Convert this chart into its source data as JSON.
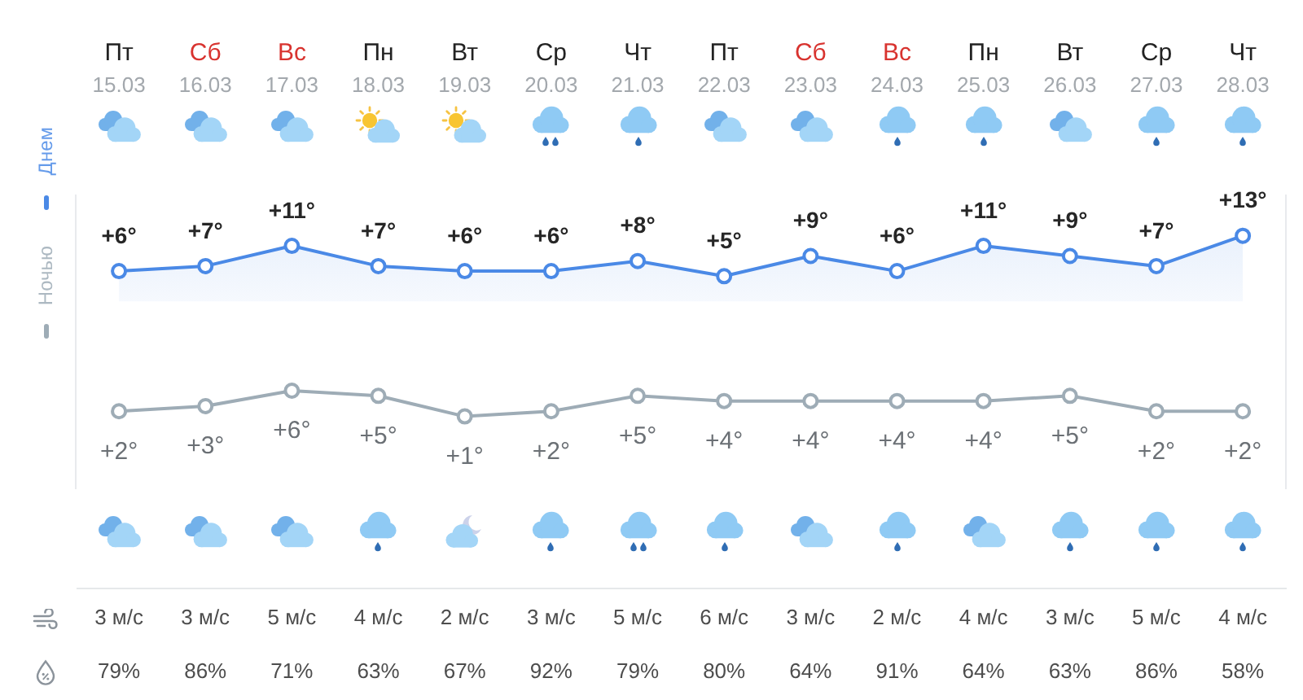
{
  "chart_data": {
    "type": "line",
    "categories": [
      "Пт\n15.03",
      "Сб\n16.03",
      "Вс\n17.03",
      "Пн\n18.03",
      "Вт\n19.03",
      "Ср\n20.03",
      "Чт\n21.03",
      "Пт\n22.03",
      "Сб\n23.03",
      "Вс\n24.03",
      "Пн\n25.03",
      "Вт\n26.03",
      "Ср\n27.03",
      "Чт\n28.03"
    ],
    "series": [
      {
        "name": "Днем",
        "type": "area",
        "color": "#4a89e6",
        "values": [
          6,
          7,
          11,
          7,
          6,
          6,
          8,
          5,
          9,
          6,
          11,
          9,
          7,
          13
        ],
        "value_labels": [
          "+6°",
          "+7°",
          "+11°",
          "+7°",
          "+6°",
          "+6°",
          "+8°",
          "+5°",
          "+9°",
          "+6°",
          "+11°",
          "+9°",
          "+7°",
          "+13°"
        ]
      },
      {
        "name": "Ночью",
        "axis": "y2",
        "color": "#9eacb6",
        "values": [
          2,
          3,
          6,
          5,
          1,
          2,
          5,
          4,
          4,
          4,
          4,
          5,
          2,
          2
        ],
        "value_labels": [
          "+2°",
          "+3°",
          "+6°",
          "+5°",
          "+1°",
          "+2°",
          "+5°",
          "+4°",
          "+4°",
          "+4°",
          "+4°",
          "+5°",
          "+2°",
          "+2°"
        ]
      }
    ],
    "ylim": [
      -37,
      21
    ],
    "y2lim": [
      -13,
      44
    ],
    "annotations": [
      "3 м/с",
      "3 м/с",
      "5 м/с",
      "4 м/с",
      "2 м/с",
      "3 м/с",
      "5 м/с",
      "6 м/с",
      "3 м/с",
      "2 м/с",
      "4 м/с",
      "3 м/с",
      "5 м/с",
      "4 м/с",
      "79%",
      "86%",
      "71%",
      "63%",
      "67%",
      "92%",
      "79%",
      "80%",
      "64%",
      "91%",
      "64%",
      "63%",
      "86%",
      "58%"
    ],
    "tick_labels": "x",
    "legend": "left",
    "marker": "circle"
  }
}
